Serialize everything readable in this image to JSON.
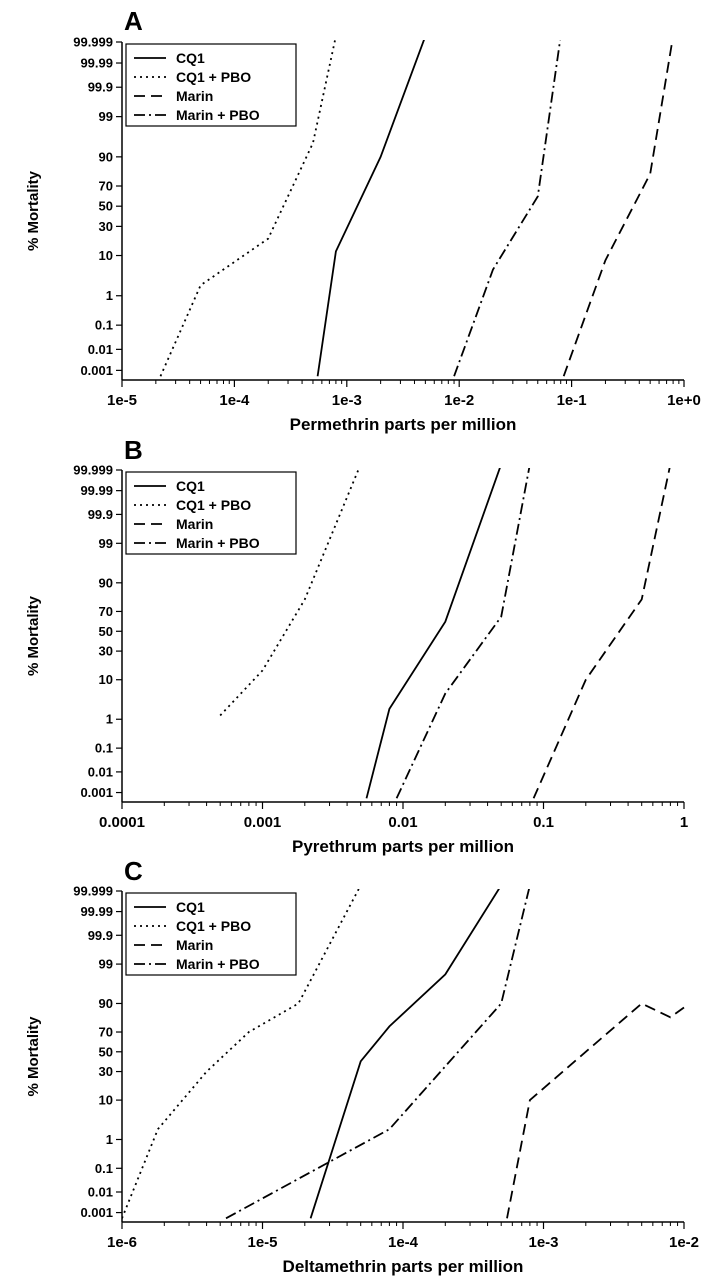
{
  "chart_data": [
    {
      "panel": "A",
      "type": "line",
      "xlabel": "Permethrin parts per million",
      "ylabel": "% Mortality",
      "xscale": "log",
      "xlim": [
        1e-05,
        1
      ],
      "xticks": [
        "1e-5",
        "1e-4",
        "1e-3",
        "1e-2",
        "1e-1",
        "1e+0"
      ],
      "ytick_labels": [
        "99.999",
        "99.99",
        "99.9",
        "99",
        "90",
        "70",
        "50",
        "30",
        "10",
        "1",
        "0.1",
        "0.01",
        "0.001"
      ],
      "yscale": "probit",
      "legend_position": "top-left",
      "series": [
        {
          "name": "CQ1",
          "style": "solid",
          "points": [
            [
              0.00055,
              0.0005
            ],
            [
              0.0008,
              12
            ],
            [
              0.002,
              90
            ],
            [
              0.005,
              99.9995
            ]
          ]
        },
        {
          "name": "CQ1 + PBO",
          "style": "dotted",
          "points": [
            [
              2.2e-05,
              0.0005
            ],
            [
              5e-05,
              2
            ],
            [
              0.0002,
              20
            ],
            [
              0.0005,
              95
            ],
            [
              0.0008,
              99.9995
            ]
          ]
        },
        {
          "name": "Marin",
          "style": "dashed",
          "points": [
            [
              0.085,
              0.0005
            ],
            [
              0.2,
              8
            ],
            [
              0.5,
              80
            ],
            [
              0.8,
              99.9995
            ]
          ]
        },
        {
          "name": "Marin + PBO",
          "style": "dashdot",
          "points": [
            [
              0.009,
              0.0005
            ],
            [
              0.02,
              5
            ],
            [
              0.05,
              60
            ],
            [
              0.08,
              99.9995
            ]
          ]
        }
      ]
    },
    {
      "panel": "B",
      "type": "line",
      "xlabel": "Pyrethrum parts per million",
      "ylabel": "% Mortality",
      "xscale": "log",
      "xlim": [
        0.0001,
        1
      ],
      "xticks": [
        "0.0001",
        "0.001",
        "0.01",
        "0.1",
        "1"
      ],
      "ytick_labels": [
        "99.999",
        "99.99",
        "99.9",
        "99",
        "90",
        "70",
        "50",
        "30",
        "10",
        "1",
        "0.1",
        "0.01",
        "0.001"
      ],
      "yscale": "probit",
      "legend_position": "top-left",
      "series": [
        {
          "name": "CQ1",
          "style": "solid",
          "points": [
            [
              0.0055,
              0.0005
            ],
            [
              0.008,
              2
            ],
            [
              0.02,
              60
            ],
            [
              0.05,
              99.9995
            ]
          ]
        },
        {
          "name": "CQ1 + PBO",
          "style": "dotted",
          "points": [
            [
              0.0005,
              1.3
            ],
            [
              0.001,
              15
            ],
            [
              0.002,
              80
            ],
            [
              0.005,
              99.9995
            ]
          ]
        },
        {
          "name": "Marin",
          "style": "dashed",
          "points": [
            [
              0.085,
              0.0005
            ],
            [
              0.2,
              10
            ],
            [
              0.5,
              80
            ],
            [
              0.8,
              99.9995
            ]
          ]
        },
        {
          "name": "Marin + PBO",
          "style": "dashdot",
          "points": [
            [
              0.009,
              0.0005
            ],
            [
              0.02,
              5
            ],
            [
              0.05,
              65
            ],
            [
              0.08,
              99.9995
            ]
          ]
        }
      ]
    },
    {
      "panel": "C",
      "type": "line",
      "xlabel": "Deltamethrin parts per million",
      "ylabel": "% Mortality",
      "xscale": "log",
      "xlim": [
        1e-06,
        0.01
      ],
      "xticks": [
        "1e-6",
        "1e-5",
        "1e-4",
        "1e-3",
        "1e-2"
      ],
      "ytick_labels": [
        "99.999",
        "99.99",
        "99.9",
        "99",
        "90",
        "70",
        "50",
        "30",
        "10",
        "1",
        "0.1",
        "0.01",
        "0.001"
      ],
      "yscale": "probit",
      "legend_position": "top-left",
      "series": [
        {
          "name": "CQ1",
          "style": "solid",
          "points": [
            [
              2.2e-05,
              0.0005
            ],
            [
              5e-05,
              40
            ],
            [
              8e-05,
              75
            ],
            [
              0.0002,
              98
            ],
            [
              0.0005,
              99.9995
            ]
          ]
        },
        {
          "name": "CQ1 + PBO",
          "style": "dotted",
          "points": [
            [
              1e-06,
              0.0005
            ],
            [
              1.8e-06,
              2
            ],
            [
              4e-06,
              30
            ],
            [
              8e-06,
              70
            ],
            [
              1.8e-05,
              90
            ],
            [
              5e-05,
              99.9995
            ]
          ]
        },
        {
          "name": "Marin",
          "style": "dashed",
          "points": [
            [
              0.00055,
              0.0005
            ],
            [
              0.0008,
              10
            ],
            [
              0.005,
              90
            ],
            [
              0.008,
              82
            ],
            [
              0.01,
              88
            ]
          ]
        },
        {
          "name": "Marin + PBO",
          "style": "dashdot",
          "points": [
            [
              5.5e-06,
              0.0005
            ],
            [
              8e-05,
              2
            ],
            [
              0.0005,
              90
            ],
            [
              0.0008,
              99.9995
            ]
          ]
        }
      ]
    }
  ],
  "panels": [
    {
      "letter": "A"
    },
    {
      "letter": "B"
    },
    {
      "letter": "C"
    }
  ]
}
